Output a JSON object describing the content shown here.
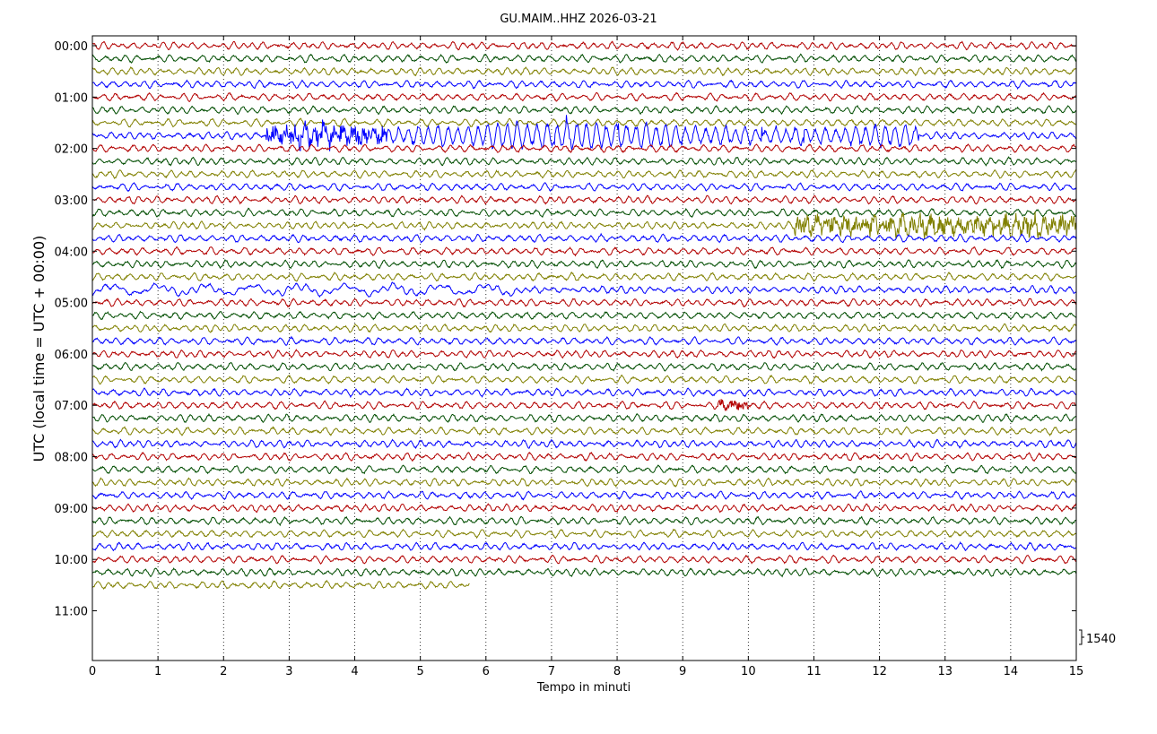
{
  "chart_data": {
    "type": "line",
    "subtype": "helicorder",
    "title": "GU.MAIM..HHZ 2026-03-21",
    "xlabel": "Tempo in minuti",
    "ylabel": "UTC (local time = UTC + 00:00)",
    "xlim": [
      0,
      15
    ],
    "x_ticks": [
      0,
      1,
      2,
      3,
      4,
      5,
      6,
      7,
      8,
      9,
      10,
      11,
      12,
      13,
      14,
      15
    ],
    "x_tick_labels": [
      "0",
      "1",
      "2",
      "3",
      "4",
      "5",
      "6",
      "7",
      "8",
      "9",
      "10",
      "11",
      "12",
      "13",
      "14",
      "15"
    ],
    "y_tick_labels": [
      "00:00",
      "01:00",
      "02:00",
      "03:00",
      "04:00",
      "05:00",
      "06:00",
      "07:00",
      "08:00",
      "09:00",
      "10:00",
      "11:00"
    ],
    "minutes_per_line": 15,
    "grid": "vertical dotted at each minute",
    "trace_colors": [
      "#b30000",
      "#004d00",
      "#808000",
      "#0000ff"
    ],
    "trace_count": 43,
    "last_trace_end_minute": 5.75,
    "scale_label": "1540",
    "events": [
      {
        "trace_index": 7,
        "start_minute": 2.65,
        "end_minute": 4.5,
        "amplitude": 2.3,
        "kind": "burst"
      },
      {
        "trace_index": 7,
        "start_minute": 4.5,
        "end_minute": 12.6,
        "amplitude": 2.6,
        "kind": "oscillation"
      },
      {
        "trace_index": 14,
        "start_minute": 10.7,
        "end_minute": 15,
        "amplitude": 2.0,
        "kind": "burst"
      },
      {
        "trace_index": 19,
        "start_minute": 0,
        "end_minute": 6.5,
        "amplitude": 1.4,
        "kind": "long-period"
      },
      {
        "trace_index": 28,
        "start_minute": 9.5,
        "end_minute": 10.0,
        "amplitude": 1.1,
        "kind": "burst"
      }
    ]
  }
}
